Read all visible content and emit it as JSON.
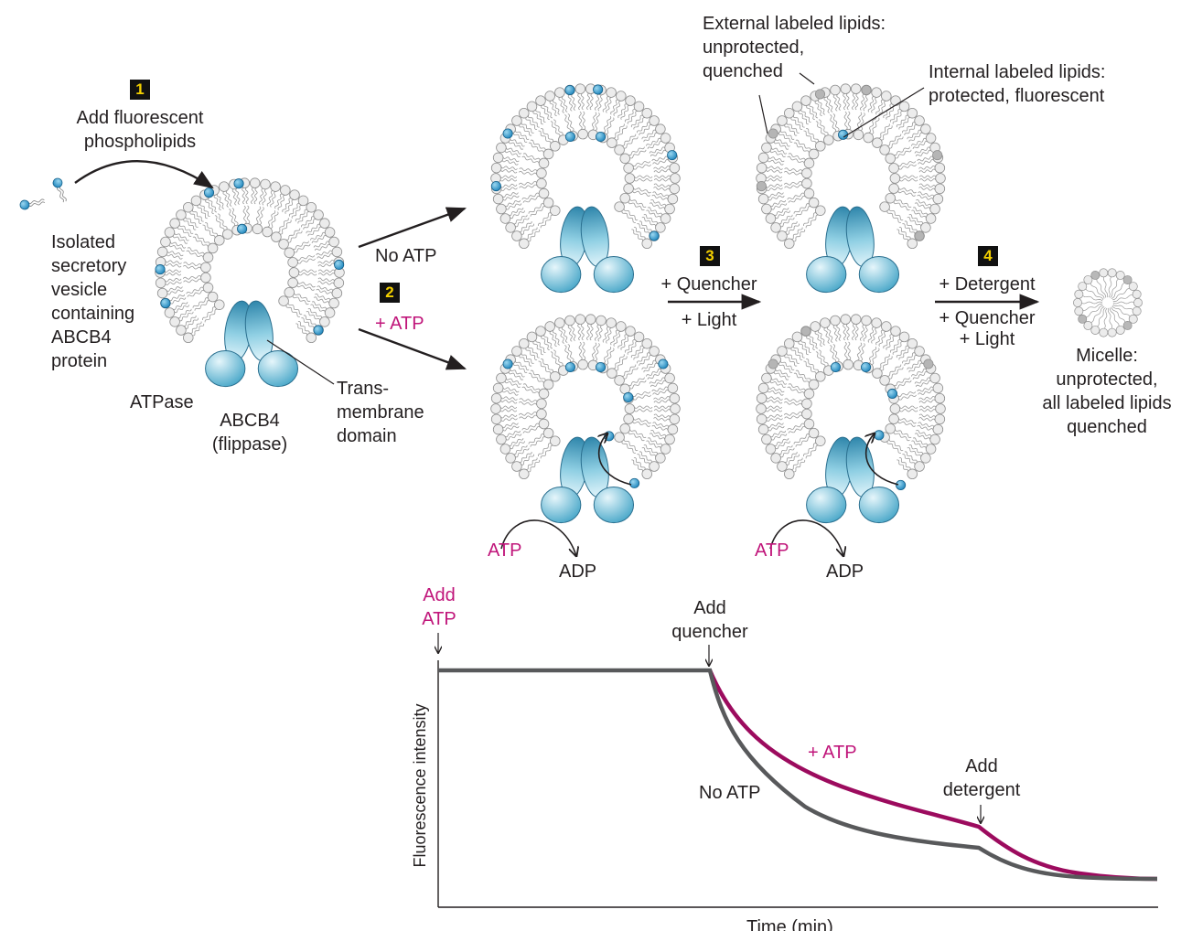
{
  "steps": {
    "s1": {
      "number": "1",
      "label": "Add fluorescent\nphospholipids"
    },
    "s2": {
      "number": "2"
    },
    "s3": {
      "number": "3",
      "quencher": "+ Quencher",
      "light": "+ Light"
    },
    "s4": {
      "number": "4",
      "detergent": "+ Detergent",
      "quencher_light": "+ Quencher\n+ Light"
    }
  },
  "labels": {
    "vesicle": "Isolated\nsecretory\nvesicle\ncontaining\nABCB4\nprotein",
    "atpase": "ATPase",
    "abcb4": "ABCB4\n(flippase)",
    "transmembrane": "Trans-\nmembrane\ndomain",
    "no_atp": "No ATP",
    "plus_atp": "+ ATP",
    "external": "External labeled lipids:\nunprotected,\nquenched",
    "internal": "Internal labeled lipids:\nprotected, fluorescent",
    "micelle": "Micelle:\nunprotected,\nall labeled lipids\nquenched",
    "atp_left": "ATP",
    "adp_left": "ADP",
    "atp_right": "ATP",
    "adp_right": "ADP"
  },
  "graph": {
    "add_atp": "Add\nATP",
    "add_quencher": "Add\nquencher",
    "add_detergent": "Add\ndetergent",
    "plus_atp": "+ ATP",
    "no_atp": "No ATP",
    "y_label": "Fluorescence intensity",
    "x_label": "Time (min)"
  },
  "colors": {
    "no_atp_curve": "#58595b",
    "atp_curve": "#9c0b5e",
    "accent": "#c0157a",
    "protein": "#5bb3cf",
    "label_head": "#1f86bd",
    "badge_bg": "#111111",
    "badge_text": "#f4d000"
  }
}
